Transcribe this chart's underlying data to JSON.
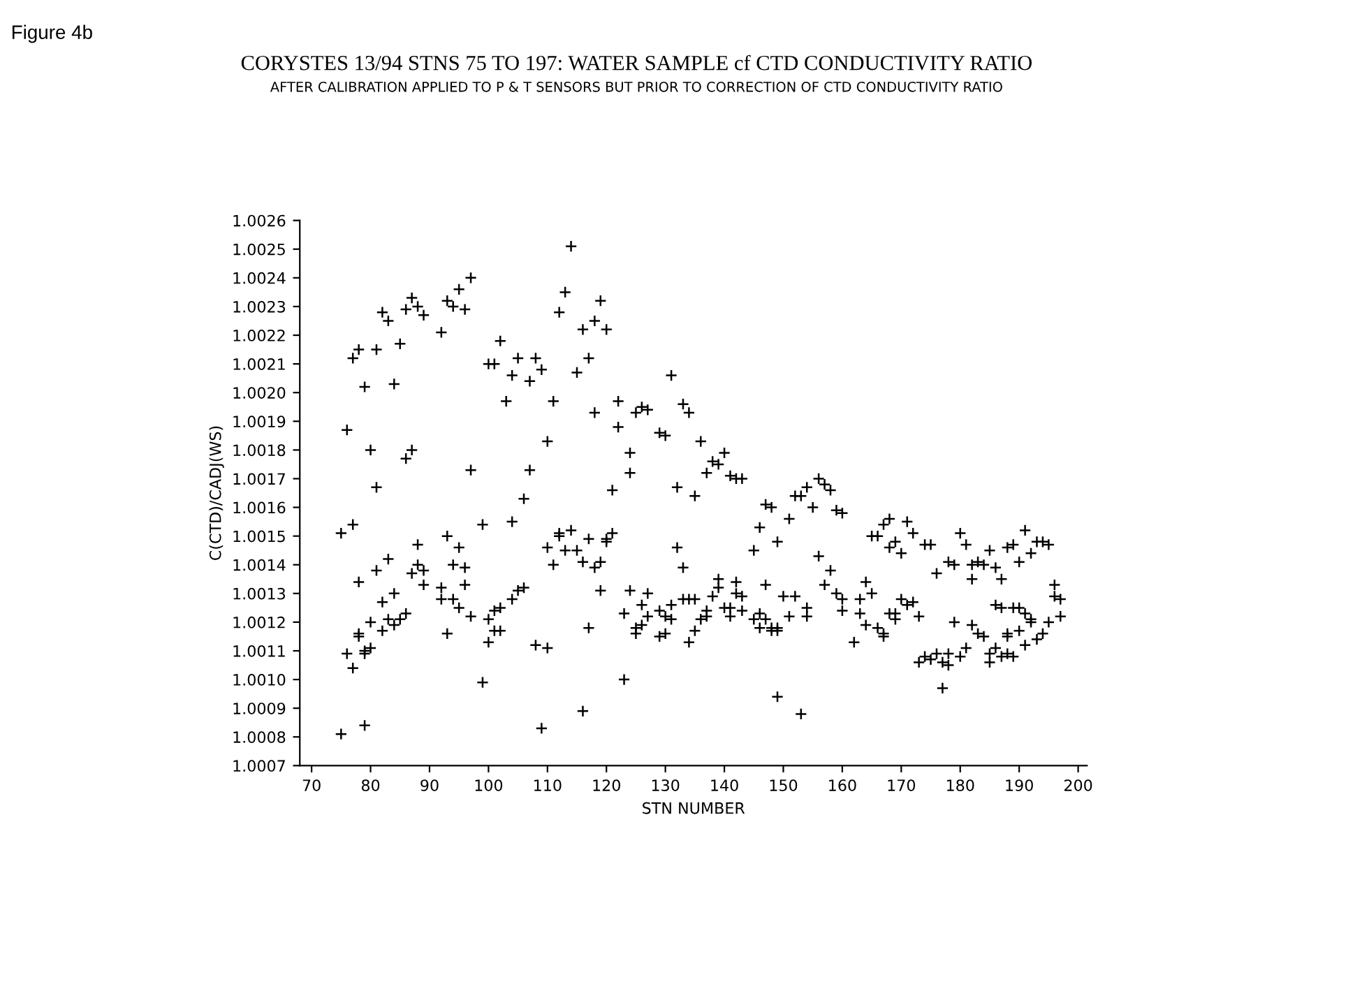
{
  "chart_data": {
    "type": "scatter",
    "title": "CORYSTES 13/94 STNS 75 TO 197: WATER SAMPLE cf CTD CONDUCTIVITY RATIO",
    "subtitle": "AFTER CALIBRATION APPLIED TO P & T SENSORS BUT PRIOR TO CORRECTION OF CTD CONDUCTIVITY RATIO",
    "xlabel": "STN NUMBER",
    "ylabel": "C(CTD)/CADJ(WS)",
    "annotations": [
      "Figure 4b"
    ],
    "marker": "cross",
    "grid": false,
    "legend": false,
    "xlim": [
      68,
      201.5
    ],
    "xticks": [
      70,
      80,
      90,
      100,
      110,
      120,
      130,
      140,
      150,
      160,
      170,
      180,
      190,
      200
    ],
    "ylim": [
      1.0007,
      1.0026
    ],
    "yticks": [
      1.0007,
      1.0008,
      1.0009,
      {
        "value": 1.001,
        "label": "1.0010"
      },
      1.0011,
      1.0012,
      1.0013,
      1.0014,
      1.0015,
      1.0016,
      1.0017,
      1.0018,
      1.0019,
      {
        "value": 1.002,
        "label": "1.0020"
      },
      1.0021,
      1.0022,
      1.0023,
      1.0024,
      1.0025,
      1.0026
    ],
    "series": [
      {
        "color": "#000000",
        "x": [
          75,
          75,
          76,
          76,
          77,
          77,
          77,
          78,
          78,
          78,
          78,
          79,
          79,
          79,
          79,
          80,
          80,
          80,
          81,
          81,
          81,
          82,
          82,
          82,
          83,
          83,
          83,
          84,
          84,
          84,
          85,
          85,
          86,
          86,
          86,
          87,
          87,
          87,
          88,
          88,
          88,
          89,
          89,
          89,
          92,
          92,
          92,
          93,
          93,
          93,
          94,
          94,
          94,
          95,
          95,
          95,
          96,
          96,
          96,
          97,
          97,
          97,
          99,
          99,
          100,
          100,
          100,
          101,
          101,
          101,
          102,
          102,
          102,
          103,
          104,
          104,
          104,
          105,
          105,
          106,
          106,
          107,
          107,
          108,
          108,
          109,
          109,
          110,
          110,
          110,
          111,
          111,
          112,
          112,
          112,
          113,
          113,
          114,
          114,
          115,
          115,
          116,
          116,
          116,
          117,
          117,
          117,
          118,
          118,
          118,
          119,
          119,
          119,
          120,
          120,
          120,
          121,
          121,
          122,
          122,
          123,
          123,
          124,
          124,
          124,
          125,
          125,
          125,
          126,
          126,
          126,
          127,
          127,
          127,
          129,
          129,
          129,
          130,
          130,
          130,
          131,
          131,
          131,
          132,
          132,
          133,
          133,
          133,
          134,
          134,
          134,
          135,
          135,
          135,
          136,
          136,
          137,
          137,
          137,
          138,
          138,
          139,
          139,
          139,
          140,
          140,
          141,
          141,
          141,
          142,
          142,
          142,
          143,
          143,
          143,
          145,
          145,
          146,
          146,
          146,
          147,
          147,
          147,
          148,
          148,
          148,
          149,
          149,
          149,
          149,
          150,
          151,
          151,
          152,
          152,
          153,
          153,
          154,
          154,
          154,
          155,
          156,
          156,
          157,
          157,
          158,
          158,
          159,
          159,
          160,
          160,
          160,
          162,
          163,
          163,
          164,
          164,
          165,
          165,
          166,
          166,
          167,
          167,
          167,
          168,
          168,
          168,
          169,
          169,
          169,
          170,
          170,
          171,
          171,
          172,
          172,
          173,
          173,
          174,
          174,
          175,
          175,
          176,
          176,
          177,
          177,
          178,
          178,
          178,
          179,
          179,
          180,
          180,
          181,
          181,
          182,
          182,
          182,
          183,
          183,
          184,
          184,
          185,
          185,
          185,
          186,
          186,
          186,
          187,
          187,
          187,
          188,
          188,
          188,
          188,
          189,
          189,
          189,
          190,
          190,
          190,
          191,
          191,
          191,
          192,
          192,
          192,
          193,
          193,
          194,
          194,
          195,
          195,
          196,
          196,
          197,
          197
        ],
        "values": [
          1.00151,
          1.00081,
          1.00187,
          1.00109,
          1.00212,
          1.00154,
          1.00104,
          1.00215,
          1.00134,
          1.00116,
          1.00115,
          1.00202,
          1.0011,
          1.00109,
          1.00084,
          1.0018,
          1.0012,
          1.00111,
          1.00215,
          1.00167,
          1.00138,
          1.00228,
          1.00127,
          1.00117,
          1.00225,
          1.00142,
          1.00121,
          1.00203,
          1.0013,
          1.00119,
          1.00217,
          1.00121,
          1.00229,
          1.00177,
          1.00123,
          1.00233,
          1.0018,
          1.00137,
          1.0023,
          1.00147,
          1.0014,
          1.00227,
          1.00138,
          1.00133,
          1.00221,
          1.00132,
          1.00128,
          1.00232,
          1.0015,
          1.00116,
          1.0023,
          1.0014,
          1.00128,
          1.00236,
          1.00146,
          1.00125,
          1.00229,
          1.00139,
          1.00133,
          1.0024,
          1.00173,
          1.00122,
          1.00154,
          1.00099,
          1.0021,
          1.00121,
          1.00113,
          1.0021,
          1.00124,
          1.00117,
          1.00218,
          1.00125,
          1.00117,
          1.00197,
          1.00206,
          1.00155,
          1.00128,
          1.00212,
          1.00131,
          1.00163,
          1.00132,
          1.00204,
          1.00173,
          1.00212,
          1.00112,
          1.00208,
          1.00083,
          1.00183,
          1.00146,
          1.00111,
          1.00197,
          1.0014,
          1.00228,
          1.00151,
          1.0015,
          1.00235,
          1.00145,
          1.00251,
          1.00152,
          1.00207,
          1.00145,
          1.00222,
          1.00141,
          1.00089,
          1.00212,
          1.00149,
          1.00118,
          1.00225,
          1.00193,
          1.00139,
          1.00232,
          1.00141,
          1.00131,
          1.00222,
          1.00149,
          1.00148,
          1.00166,
          1.00151,
          1.00197,
          1.00188,
          1.00123,
          1.001,
          1.00179,
          1.00172,
          1.00131,
          1.00193,
          1.00118,
          1.00116,
          1.00195,
          1.00126,
          1.00119,
          1.00194,
          1.0013,
          1.00122,
          1.00186,
          1.00124,
          1.00115,
          1.00185,
          1.00122,
          1.00116,
          1.00206,
          1.00126,
          1.00121,
          1.00167,
          1.00146,
          1.00196,
          1.00139,
          1.00128,
          1.00193,
          1.00128,
          1.00113,
          1.00164,
          1.00128,
          1.00117,
          1.00183,
          1.00121,
          1.00172,
          1.00124,
          1.00122,
          1.00176,
          1.00129,
          1.00175,
          1.00135,
          1.00132,
          1.00179,
          1.00125,
          1.00171,
          1.00125,
          1.00122,
          1.0017,
          1.00134,
          1.0013,
          1.0017,
          1.00129,
          1.00124,
          1.00145,
          1.00121,
          1.00153,
          1.00123,
          1.00118,
          1.00161,
          1.00133,
          1.00121,
          1.0016,
          1.00118,
          1.00117,
          1.00148,
          1.00118,
          1.00117,
          1.00094,
          1.00129,
          1.00156,
          1.00122,
          1.00164,
          1.00129,
          1.00164,
          1.00088,
          1.00167,
          1.00125,
          1.00122,
          1.0016,
          1.0017,
          1.00143,
          1.00168,
          1.00133,
          1.00166,
          1.00138,
          1.00159,
          1.0013,
          1.00158,
          1.00128,
          1.00124,
          1.00113,
          1.00128,
          1.00123,
          1.00134,
          1.00119,
          1.0015,
          1.0013,
          1.0015,
          1.00118,
          1.00154,
          1.00116,
          1.00115,
          1.00156,
          1.00146,
          1.00123,
          1.00148,
          1.00123,
          1.00121,
          1.00144,
          1.00128,
          1.00155,
          1.00126,
          1.00151,
          1.00127,
          1.00122,
          1.00106,
          1.00147,
          1.00108,
          1.00147,
          1.00107,
          1.00137,
          1.00109,
          1.00106,
          1.00097,
          1.00141,
          1.00109,
          1.00105,
          1.0014,
          1.0012,
          1.00151,
          1.00108,
          1.00147,
          1.00111,
          1.0014,
          1.00135,
          1.00119,
          1.00141,
          1.00116,
          1.0014,
          1.00115,
          1.00145,
          1.00109,
          1.00106,
          1.00139,
          1.00126,
          1.00111,
          1.00135,
          1.00125,
          1.00108,
          1.00146,
          1.00116,
          1.00115,
          1.00109,
          1.00147,
          1.00125,
          1.00108,
          1.00141,
          1.00125,
          1.00117,
          1.00152,
          1.00123,
          1.00112,
          1.00144,
          1.00121,
          1.0012,
          1.00148,
          1.00114,
          1.00148,
          1.00116,
          1.00147,
          1.0012,
          1.00133,
          1.00129,
          1.00128,
          1.00122
        ]
      }
    ]
  }
}
